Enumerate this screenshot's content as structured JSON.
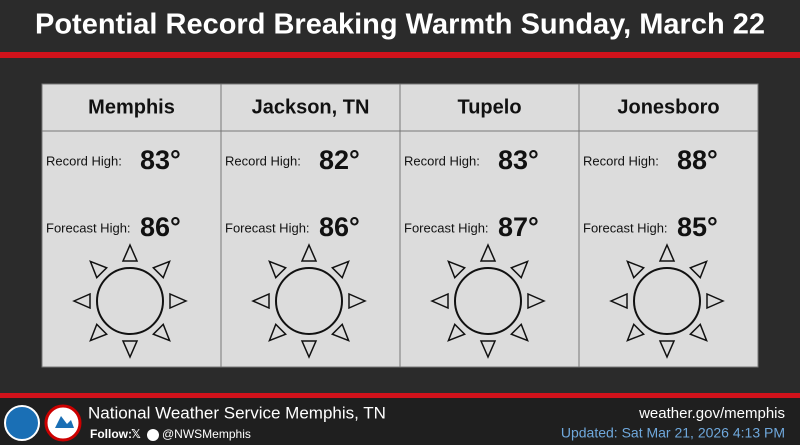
{
  "header": {
    "title": "Potential Record Breaking Warmth Sunday, March 22"
  },
  "cities": [
    {
      "name": "Memphis",
      "record_label": "Record High:",
      "record_value": "83°",
      "forecast_label": "Forecast High:",
      "forecast_value": "86°"
    },
    {
      "name": "Jackson, TN",
      "record_label": "Record High:",
      "record_value": "82°",
      "forecast_label": "Forecast High:",
      "forecast_value": "86°"
    },
    {
      "name": "Tupelo",
      "record_label": "Record High:",
      "record_value": "83°",
      "forecast_label": "Forecast High:",
      "forecast_value": "87°"
    },
    {
      "name": "Jonesboro",
      "record_label": "Record High:",
      "record_value": "88°",
      "forecast_label": "Forecast High:",
      "forecast_value": "85°"
    }
  ],
  "footer": {
    "organization": "National Weather Service Memphis, TN",
    "follow": "Follow:",
    "handle": "@NWSMemphis",
    "website": "weather.gov/memphis",
    "updated": "Updated: Sat Mar 21, 2026 4:13 PM"
  }
}
